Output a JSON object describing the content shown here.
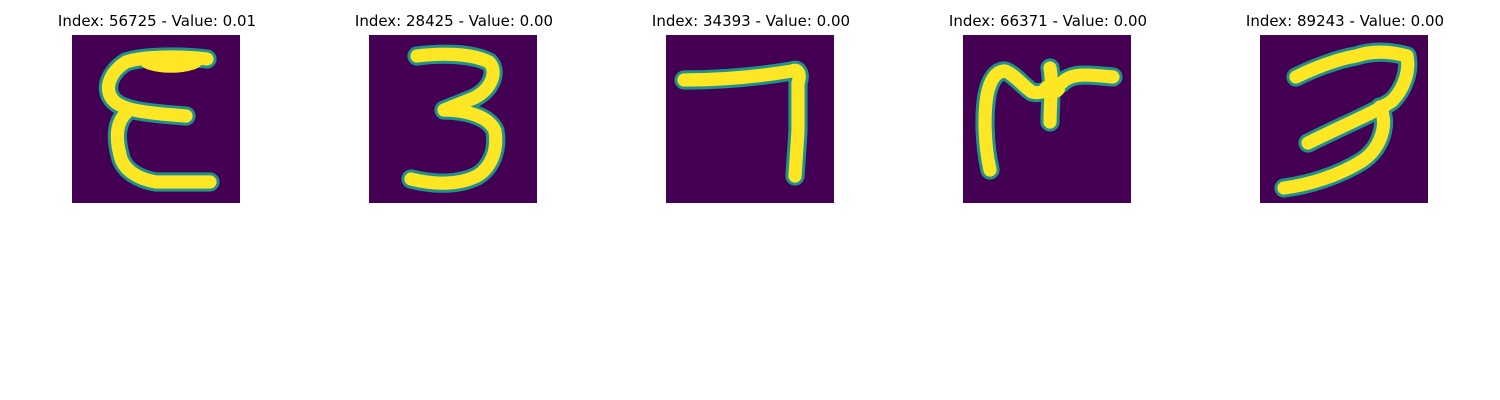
{
  "figure": {
    "panels": [
      {
        "index": "56725",
        "value": "0.01",
        "title": "Index: 56725 - Value: 0.01",
        "glyph": "handwritten E-shaped digit"
      },
      {
        "index": "28425",
        "value": "0.00",
        "title": "Index: 28425 - Value: 0.00",
        "glyph": "handwritten 3"
      },
      {
        "index": "34393",
        "value": "0.00",
        "title": "Index: 34393 - Value: 0.00",
        "glyph": "handwritten 7"
      },
      {
        "index": "66371",
        "value": "0.00",
        "title": "Index: 66371 - Value: 0.00",
        "glyph": "handwritten M-like shape"
      },
      {
        "index": "89243",
        "value": "0.00",
        "title": "Index: 89243 - Value: 0.00",
        "glyph": "handwritten 3"
      }
    ],
    "colors": {
      "background": "#440154",
      "stroke_edge": "#21918c",
      "stroke_core": "#fde725"
    }
  }
}
